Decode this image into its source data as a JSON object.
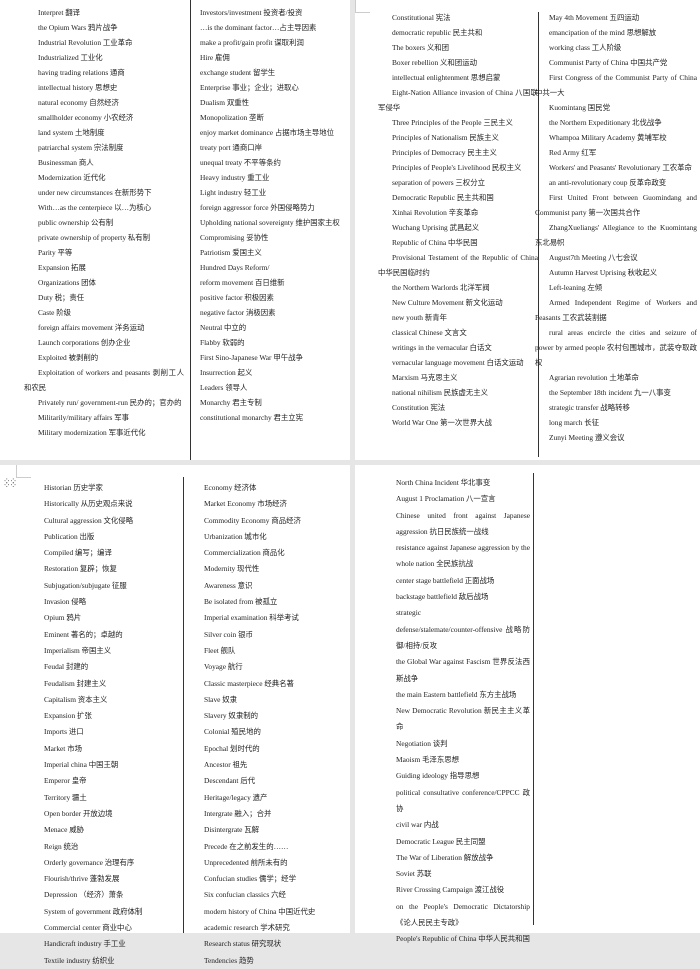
{
  "panels": {
    "top_left": {
      "col1": [
        "Interpret 翻译",
        "the Opium Wars 鸦片战争",
        "Industrial Revolution 工业革命",
        "Industrialized 工业化",
        "having trading relations 通商",
        "intellectual history 思想史",
        "natural economy 自然经济",
        "smallholder economy 小农经济",
        "land system 土地制度",
        "patriarchal system 宗法制度",
        "Businessman 商人",
        "Modernization 近代化",
        "under new circumstances 在新形势下",
        "With…as the centerpiece 以…为核心",
        "public ownership 公有制",
        "private ownership of property 私有制",
        "Parity 平等",
        "Expansion 拓展",
        "Organizations 团体",
        "Duty 税；责任",
        "Caste 阶级",
        "foreign affairs movement 洋务运动",
        "Launch corporations 创办企业",
        "Exploited 被剥削的",
        "Exploitation of workers and peasants 剥削工人和农民",
        "Privately run/ government-run 民办的；官办的",
        "Militarily/military affairs 军事",
        "Military modernization 军事近代化"
      ],
      "col2": [
        "Investors/investment 投资者/投资",
        "…is the dominant factor…占主导因素",
        "make a profit/gain profit 谋取利润",
        "Hire 雇佣",
        "exchange student 留学生",
        "Enterprise 事业；企业；进取心",
        "Dualism 双重性",
        "Monopolization 垄断",
        "enjoy market dominance 占据市场主导地位",
        "treaty port 通商口岸",
        "unequal treaty 不平等条约",
        "Heavy industry 重工业",
        "Light industry 轻工业",
        "foreign aggressor force 外国侵略势力",
        "Upholding national sovereignty 维护国家主权",
        "Compromising 妥协性",
        "Patriotism 爱国主义",
        "Hundred Days Reform/",
        "reform movement 百日维新",
        "positive factor 积极因素",
        "negative factor 消极因素",
        "Neutral 中立的",
        "Flabby 软弱的",
        "First Sino-Japanese War 甲午战争",
        "Insurrection 起义",
        "Leaders 领导人",
        "Monarchy 君主专制",
        "constitutional monarchy 君主立宪"
      ]
    },
    "top_right": {
      "col1": [
        "Constitutional 宪法",
        "democratic republic 民主共和",
        "The boxers 义和团",
        "Boxer rebellion 义和团运动",
        "intellectual enlightenment 思想启蒙",
        "Eight-Nation Alliance invasion of China 八国联军侵华",
        "Three Principles of the People 三民主义",
        "Principles of Nationalism 民族主义",
        "Principles of Democracy 民主主义",
        "Principles of People's Livelihood 民权主义",
        "separation of powers 三权分立",
        "Democratic Republic 民主共和国",
        "Xinhai Revolution 辛亥革命",
        "Wuchang Uprising 武昌起义",
        "Republic of China 中华民国",
        "Provisional Testament of the Republic of China 中华民国临时约",
        "the Northern Warlords 北洋军阀",
        "New Culture Movement 新文化运动",
        "new youth 新青年",
        "classical Chinese 文言文",
        "writings in the vernacular 白话文",
        "vernacular language movement 白话文运动",
        "Marxism 马克思主义",
        "national nihilism 民族虚无主义",
        "Constitution 宪法",
        "World War One 第一次世界大战"
      ],
      "col2": [
        "May 4th Movement 五四运动",
        "emancipation of the mind 思想解放",
        "working class 工人阶级",
        "Communist Party of China 中国共产党",
        "First Congress of the Communist Party of China 中共一大",
        "Kuomintang 国民党",
        "the Northern Expeditionary 北伐战争",
        "Whampoa Military Academy 黄埔军校",
        "Red Army 红军",
        "Workers' and Peasants' Revolutionary 工农革命",
        "an anti-revolutionary coup 反革命政变",
        "First United Front between Guomindang and Communist party 第一次国共合作",
        "ZhangXueliangs' Allegiance to the Kuomintang 东北易帜",
        "August7th Meeting 八七会议",
        "Autumn Harvest Uprising 秋收起义",
        "Left-leaning 左倾",
        "Armed Independent Regime of Workers and Peasants 工农武装割据",
        "rural areas encircle the cities and seizure of power by armed people 农村包围城市，武装夺取政权",
        "Agrarian revolution 土地革命",
        "the September 18th incident 九一八事变",
        "strategic transfer 战略转移",
        "long march 长征",
        "Zunyi Meeting 遵义会议"
      ]
    },
    "bottom_left": {
      "col1": [
        "Historian 历史学家",
        "Historically 从历史观点来说",
        "Cultural aggression 文化侵略",
        "Publication 出版",
        "Compiled 编写；编译",
        "Restoration 复辟；恢复",
        "Subjugation/subjugate 征服",
        "Invasion 侵略",
        "Opium 鸦片",
        "Eminent 著名的；卓越的",
        "Imperialism 帝国主义",
        "Feudal 封建的",
        "Feudalism 封建主义",
        "Capitalism 资本主义",
        "Expansion 扩张",
        "Imports 进口",
        "Market 市场",
        "Imperial china 中国王朝",
        "Emperor 皇帝",
        "Territory 疆土",
        "Open border 开放边境",
        "Menace 威胁",
        "Reign 统治",
        "Orderly governance 治理有序",
        "Flourish/thrive 蓬勃发展",
        "Depression （经济）萧条",
        "System of government 政府体制",
        "Commercial center 商业中心",
        "Handicraft industry 手工业",
        "Textile industry 纺织业"
      ],
      "col2": [
        "Economy 经济体",
        "Market Economy 市场经济",
        "Commodity Economy 商品经济",
        "Urbanization 城市化",
        "Commercialization 商品化",
        "Modernity 现代性",
        "Awareness 意识",
        "Be isolated from 被孤立",
        "Imperial examination 科举考试",
        "Silver coin 银币",
        "Fleet 舰队",
        "Voyage 航行",
        "Classic masterpiece 经典名著",
        "Slave 奴隶",
        "Slavery 奴隶制的",
        "Colonial 殖民地的",
        "Epochal 划时代的",
        "Ancestor 祖先",
        "Descendant 后代",
        "Heritage/legacy 遗产",
        "Intergrate 融入；合并",
        "Disintergrate 瓦解",
        "Precede 在之前发生的……",
        "Unprecedented 前所未有的",
        "Confucian studies 儒学；经学",
        "Six confucian classics 六经",
        "modern history of China 中国近代史",
        "academic research 学术研究",
        "Research status 研究现状",
        "Tendencies 趋势"
      ]
    },
    "bottom_right": {
      "col1": [
        "North China Incident 华北事变",
        "August 1 Proclamation 八一宣言",
        "Chinese united front against Japanese aggression 抗日民族统一战线",
        "resistance against Japanese aggression by the whole nation 全民族抗战",
        "center stage battlefield 正面战场",
        "backstage battlefield 敌后战场",
        "strategic",
        "defense/stalemate/counter-offensive 战略防御/相持/反攻",
        "the Global War against Fascism 世界反法西斯战争",
        "the main Eastern battlefield 东方主战场",
        "New Democratic Revolution 新民主主义革命",
        "Negotiation 谈判",
        "Maoism 毛泽东思想",
        "Guiding ideology 指导思想",
        "political consultative conference/CPPCC 政协",
        "civil war 内战",
        "Democratic League 民主同盟",
        "The War of Liberation 解放战争",
        "Soviet 苏联",
        "River Crossing Campaign 渡江战役",
        "on the People's Democratic Dictatorship 《论人民民主专政》",
        "People's Republic of China 中华人民共和国"
      ]
    }
  },
  "icons": {
    "drag_handle": "drag-handle-icon"
  }
}
